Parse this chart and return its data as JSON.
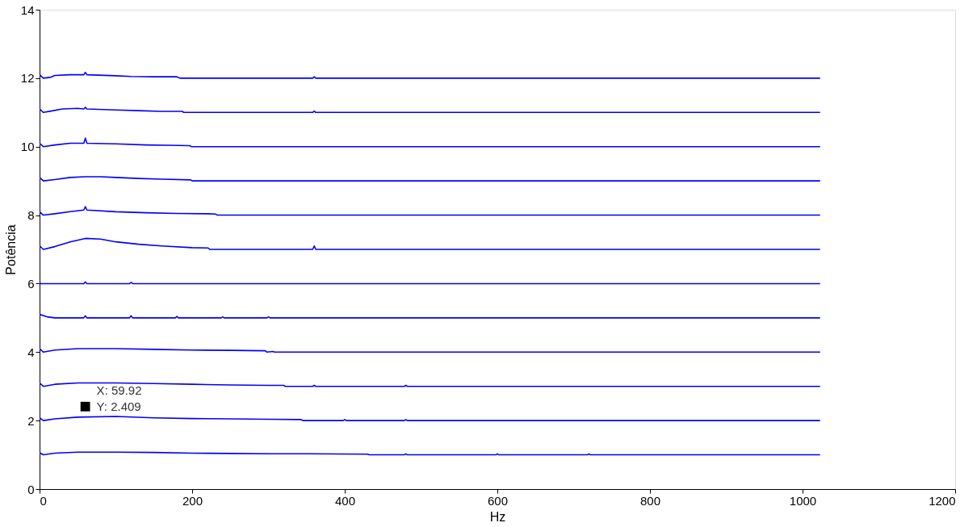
{
  "chart_data": {
    "type": "line",
    "xlabel": "Hz",
    "ylabel": "Potência",
    "xlim": [
      0,
      1200
    ],
    "xticks": [
      0,
      200,
      400,
      600,
      800,
      1000,
      1200
    ],
    "ylim": [
      0,
      14
    ],
    "yticks": [
      0,
      2,
      4,
      6,
      8,
      10,
      12,
      14
    ],
    "grid": false,
    "legend": false,
    "marker": "none",
    "line_style": "solid",
    "annotations": [
      {
        "text": "X: 59.92\nY: 2.409",
        "x": 59.92,
        "y": 2.409
      }
    ],
    "series": [
      {
        "color": "#0000ff",
        "x": [
          0,
          5,
          15,
          20,
          40,
          58,
          60,
          62,
          100,
          120,
          150,
          180,
          184,
          186,
          358,
          360,
          362,
          1023
        ],
        "values": [
          12.1,
          12.0,
          12.03,
          12.08,
          12.1,
          12.1,
          12.17,
          12.1,
          12.07,
          12.05,
          12.04,
          12.04,
          12.0,
          12.0,
          12.0,
          12.04,
          12.0,
          12.0
        ]
      },
      {
        "color": "#0000ff",
        "x": [
          0,
          5,
          15,
          30,
          50,
          58,
          60,
          62,
          100,
          130,
          160,
          187,
          189,
          358,
          360,
          362,
          1023
        ],
        "values": [
          11.1,
          11.0,
          11.04,
          11.1,
          11.12,
          11.1,
          11.15,
          11.1,
          11.07,
          11.05,
          11.03,
          11.03,
          11.0,
          11.0,
          11.04,
          11.0,
          11.0
        ]
      },
      {
        "color": "#0000ff",
        "x": [
          0,
          5,
          20,
          40,
          58,
          60,
          62,
          100,
          140,
          170,
          197,
          199,
          1023
        ],
        "values": [
          10.1,
          10.0,
          10.05,
          10.1,
          10.1,
          10.25,
          10.1,
          10.08,
          10.05,
          10.04,
          10.03,
          10.0,
          10.0
        ]
      },
      {
        "color": "#0000ff",
        "x": [
          0,
          5,
          20,
          40,
          60,
          80,
          100,
          130,
          160,
          198,
          200,
          1023
        ],
        "values": [
          9.1,
          9.0,
          9.04,
          9.1,
          9.12,
          9.12,
          9.1,
          9.07,
          9.05,
          9.03,
          9.0,
          9.0
        ]
      },
      {
        "color": "#0000ff",
        "x": [
          0,
          5,
          20,
          40,
          58,
          60,
          62,
          100,
          140,
          180,
          220,
          231,
          233,
          1023
        ],
        "values": [
          8.1,
          8.0,
          8.04,
          8.1,
          8.15,
          8.25,
          8.15,
          8.1,
          8.07,
          8.05,
          8.04,
          8.03,
          8.0,
          8.0
        ]
      },
      {
        "color": "#0000ff",
        "x": [
          0,
          5,
          20,
          40,
          60,
          80,
          100,
          130,
          160,
          200,
          221,
          223,
          358,
          360,
          362,
          1023
        ],
        "values": [
          7.1,
          7.0,
          7.08,
          7.22,
          7.32,
          7.3,
          7.22,
          7.15,
          7.1,
          7.05,
          7.04,
          7.0,
          7.0,
          7.1,
          7.0,
          7.0
        ]
      },
      {
        "color": "#0000ff",
        "x": [
          0,
          1,
          58,
          60,
          62,
          118,
          120,
          122,
          1023
        ],
        "values": [
          6.05,
          6.0,
          6.0,
          6.05,
          6.0,
          6.0,
          6.04,
          6.0,
          6.0
        ]
      },
      {
        "color": "#0000ff",
        "x": [
          0,
          10,
          20,
          58,
          60,
          62,
          118,
          120,
          122,
          178,
          180,
          182,
          238,
          240,
          242,
          298,
          300,
          302,
          1023
        ],
        "values": [
          5.1,
          5.03,
          5.0,
          5.0,
          5.06,
          5.0,
          5.0,
          5.06,
          5.0,
          5.0,
          5.04,
          5.0,
          5.0,
          5.03,
          5.0,
          5.0,
          5.03,
          5.0,
          5.0
        ]
      },
      {
        "color": "#0000ff",
        "x": [
          0,
          5,
          20,
          50,
          100,
          150,
          200,
          250,
          296,
          298,
          306,
          308,
          1023
        ],
        "values": [
          4.1,
          4.0,
          4.06,
          4.1,
          4.1,
          4.08,
          4.06,
          4.05,
          4.04,
          4.0,
          4.02,
          4.0,
          4.0
        ]
      },
      {
        "color": "#0000ff",
        "x": [
          0,
          5,
          20,
          50,
          100,
          150,
          200,
          250,
          300,
          320,
          322,
          358,
          360,
          362,
          478,
          480,
          482,
          1023
        ],
        "values": [
          3.1,
          3.0,
          3.06,
          3.1,
          3.1,
          3.08,
          3.06,
          3.04,
          3.03,
          3.03,
          3.0,
          3.0,
          3.03,
          3.0,
          3.0,
          3.03,
          3.0,
          3.0
        ]
      },
      {
        "color": "#0000ff",
        "x": [
          0,
          5,
          20,
          50,
          100,
          150,
          200,
          250,
          300,
          343,
          345,
          398,
          400,
          402,
          478,
          480,
          482,
          1023
        ],
        "values": [
          2.08,
          2.0,
          2.05,
          2.1,
          2.12,
          2.08,
          2.06,
          2.05,
          2.04,
          2.03,
          2.0,
          2.0,
          2.03,
          2.0,
          2.0,
          2.03,
          2.0,
          2.0
        ]
      },
      {
        "color": "#0000ff",
        "x": [
          0,
          5,
          20,
          50,
          100,
          150,
          200,
          250,
          300,
          350,
          430,
          432,
          478,
          480,
          482,
          598,
          600,
          602,
          718,
          720,
          722,
          1023
        ],
        "values": [
          1.06,
          1.0,
          1.05,
          1.08,
          1.08,
          1.07,
          1.05,
          1.04,
          1.03,
          1.03,
          1.02,
          1.0,
          1.0,
          1.03,
          1.0,
          1.0,
          1.03,
          1.0,
          1.0,
          1.03,
          1.0,
          1.0
        ]
      }
    ]
  }
}
